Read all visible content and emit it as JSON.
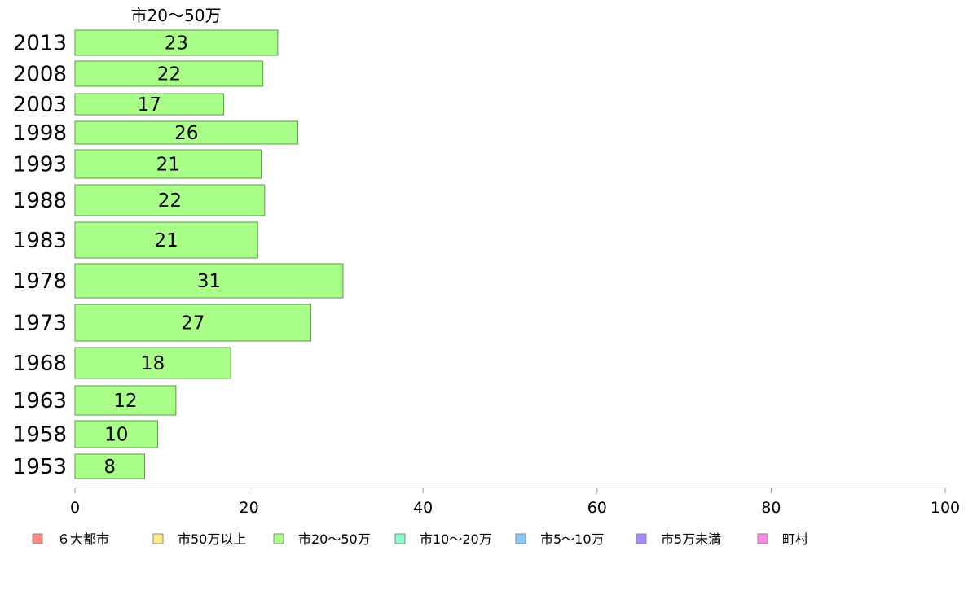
{
  "chart_data": {
    "type": "bar",
    "orientation": "horizontal",
    "series_title": "市20～50万",
    "categories": [
      "2013",
      "2008",
      "2003",
      "1998",
      "1993",
      "1988",
      "1983",
      "1978",
      "1973",
      "1968",
      "1963",
      "1958",
      "1953"
    ],
    "values": [
      23,
      22,
      17,
      26,
      21,
      22,
      21,
      31,
      27,
      18,
      12,
      10,
      8
    ],
    "bar_lengths": [
      23.3,
      21.6,
      17.1,
      25.6,
      21.4,
      21.8,
      21.0,
      30.8,
      27.1,
      17.9,
      11.6,
      9.5,
      8.0
    ],
    "xlim": [
      0,
      100
    ],
    "xticks": [
      "0",
      "20",
      "40",
      "60",
      "80",
      "100"
    ],
    "bar_color": "#aaff88",
    "bar_stroke": "#5a9a4a",
    "legend_position": "bottom",
    "legend": [
      {
        "name": "６大都市",
        "color": "#ff8888"
      },
      {
        "name": "市50万以上",
        "color": "#ffee88"
      },
      {
        "name": "市20～50万",
        "color": "#aaff88"
      },
      {
        "name": "市10～20万",
        "color": "#88ffcc"
      },
      {
        "name": "市5～10万",
        "color": "#88ccff"
      },
      {
        "name": "市5万未満",
        "color": "#aa88ff"
      },
      {
        "name": "町村",
        "color": "#ff88ee"
      }
    ]
  }
}
